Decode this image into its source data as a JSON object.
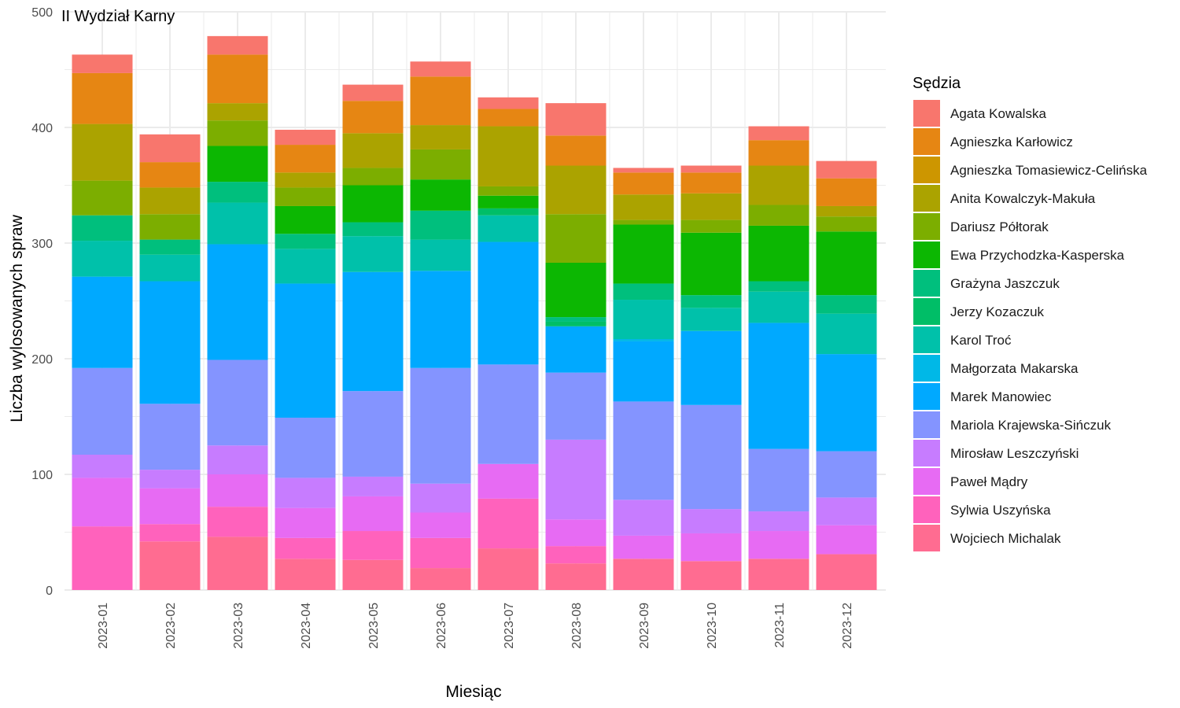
{
  "chart_data": {
    "type": "bar",
    "stacked": true,
    "title": "II Wydział Karny",
    "xlabel": "Miesiąc",
    "ylabel": "Liczba wylosowanych spraw",
    "ylim": [
      0,
      500
    ],
    "yticks": [
      0,
      100,
      200,
      300,
      400,
      500
    ],
    "grid": true,
    "legend_title": "Sędzia",
    "legend_position": "right",
    "categories": [
      "2023-01",
      "2023-02",
      "2023-03",
      "2023-04",
      "2023-05",
      "2023-06",
      "2023-07",
      "2023-08",
      "2023-09",
      "2023-10",
      "2023-11",
      "2023-12"
    ],
    "series": [
      {
        "name": "Wojciech Michalak",
        "color": "#FF6C91",
        "values": [
          0,
          42,
          46,
          27,
          26,
          19,
          36,
          23,
          27,
          25,
          27,
          31
        ]
      },
      {
        "name": "Sylwia Uszyńska",
        "color": "#FF62BC",
        "values": [
          55,
          15,
          26,
          18,
          25,
          26,
          43,
          15,
          0,
          0,
          0,
          0
        ]
      },
      {
        "name": "Paweł Mądry",
        "color": "#E76BF3",
        "values": [
          42,
          31,
          28,
          26,
          30,
          22,
          30,
          23,
          20,
          24,
          24,
          25
        ]
      },
      {
        "name": "Mirosław Leszczyński",
        "color": "#C77CFF",
        "values": [
          20,
          16,
          25,
          26,
          17,
          25,
          0,
          69,
          31,
          21,
          17,
          24
        ]
      },
      {
        "name": "Mariola Krajewska-Sińczuk",
        "color": "#8494FF",
        "values": [
          75,
          57,
          74,
          52,
          74,
          100,
          86,
          58,
          85,
          90,
          54,
          40
        ]
      },
      {
        "name": "Marek Manowiec",
        "color": "#00A9FF",
        "values": [
          79,
          106,
          100,
          116,
          103,
          84,
          106,
          40,
          52,
          64,
          109,
          84
        ]
      },
      {
        "name": "Małgorzata Makarska",
        "color": "#00B8E7",
        "values": [
          0,
          0,
          0,
          0,
          0,
          0,
          0,
          0,
          2,
          0,
          0,
          0
        ]
      },
      {
        "name": "Karol Troć",
        "color": "#00C1AA",
        "values": [
          31,
          23,
          36,
          30,
          31,
          27,
          23,
          0,
          34,
          20,
          27,
          35
        ]
      },
      {
        "name": "Jerzy Kozaczuk",
        "color": "#00BE67",
        "values": [
          0,
          0,
          0,
          0,
          0,
          0,
          6,
          4,
          0,
          0,
          0,
          0
        ]
      },
      {
        "name": "Grażyna Jaszczuk",
        "color": "#00BF7D",
        "values": [
          22,
          13,
          18,
          13,
          12,
          25,
          0,
          4,
          14,
          11,
          9,
          16
        ]
      },
      {
        "name": "Ewa Przychodzka-Kasperska",
        "color": "#0CB702",
        "values": [
          0,
          0,
          31,
          24,
          32,
          27,
          11,
          47,
          51,
          54,
          48,
          55
        ]
      },
      {
        "name": "Dariusz Półtorak",
        "color": "#7CAE00",
        "values": [
          30,
          22,
          22,
          16,
          15,
          26,
          8,
          42,
          4,
          11,
          18,
          13
        ]
      },
      {
        "name": "Anita Kowalczyk-Makuła",
        "color": "#ABA300",
        "values": [
          49,
          23,
          15,
          13,
          30,
          21,
          52,
          42,
          22,
          23,
          34,
          9
        ]
      },
      {
        "name": "Agnieszka Tomasiewicz-Celińska",
        "color": "#CD9600",
        "values": [
          0,
          0,
          0,
          0,
          0,
          0,
          0,
          0,
          0,
          0,
          0,
          0
        ]
      },
      {
        "name": "Agnieszka Karłowicz",
        "color": "#E68613",
        "values": [
          44,
          22,
          42,
          24,
          28,
          42,
          15,
          26,
          19,
          18,
          22,
          24
        ]
      },
      {
        "name": "Agata Kowalska",
        "color": "#F8766D",
        "values": [
          16,
          24,
          16,
          13,
          14,
          13,
          10,
          28,
          4,
          6,
          12,
          15
        ]
      }
    ]
  }
}
